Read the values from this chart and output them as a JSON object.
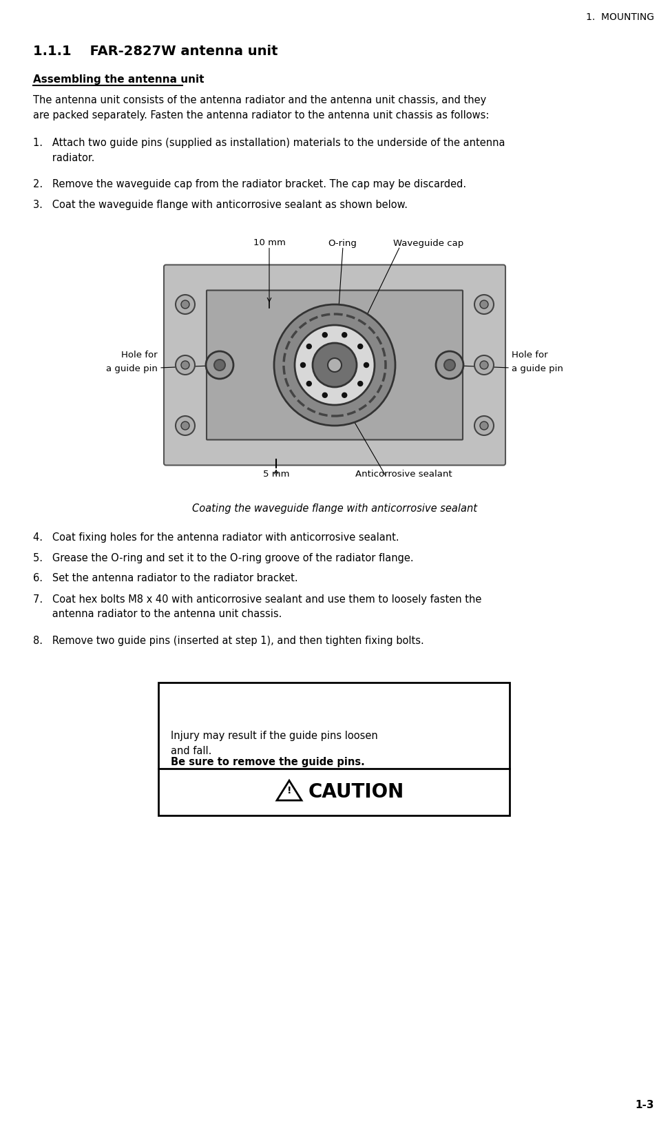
{
  "page_title": "1.  MOUNTING",
  "section": "1.1.1    FAR-2827W antenna unit",
  "subsection": "Assembling the antenna unit",
  "intro": "The antenna unit consists of the antenna radiator and the antenna unit chassis, and they\nare packed separately. Fasten the antenna radiator to the antenna unit chassis as follows:",
  "steps_1_3": [
    "1.   Attach two guide pins (supplied as installation) materials to the underside of the antenna\n      radiator.",
    "2.   Remove the waveguide cap from the radiator bracket. The cap may be discarded.",
    "3.   Coat the waveguide flange with anticorrosive sealant as shown below."
  ],
  "diagram_caption": "Coating the waveguide flange with anticorrosive sealant",
  "steps_4_8": [
    "4.   Coat fixing holes for the antenna radiator with anticorrosive sealant.",
    "5.   Grease the O-ring and set it to the O-ring groove of the radiator flange.",
    "6.   Set the antenna radiator to the radiator bracket.",
    "7.   Coat hex bolts M8 x 40 with anticorrosive sealant and use them to loosely fasten the\n      antenna radiator to the antenna unit chassis.",
    "8.   Remove two guide pins (inserted at step 1), and then tighten fixing bolts."
  ],
  "caution_bold": "Be sure to remove the guide pins.",
  "caution_text": "Injury may result if the guide pins loosen\nand fall.",
  "page_number": "1-3",
  "bg_color": "#ffffff",
  "text_color": "#000000",
  "diagram_labels": {
    "top_mm": "10 mm",
    "top_oring": "O-ring",
    "top_waveguide": "Waveguide cap",
    "left_hole1": "Hole for",
    "left_hole2": "a guide pin",
    "right_hole1": "Hole for",
    "right_hole2": "a guide pin",
    "bottom_mm": "5 mm",
    "bottom_sealant": "Anticorrosive sealant"
  }
}
